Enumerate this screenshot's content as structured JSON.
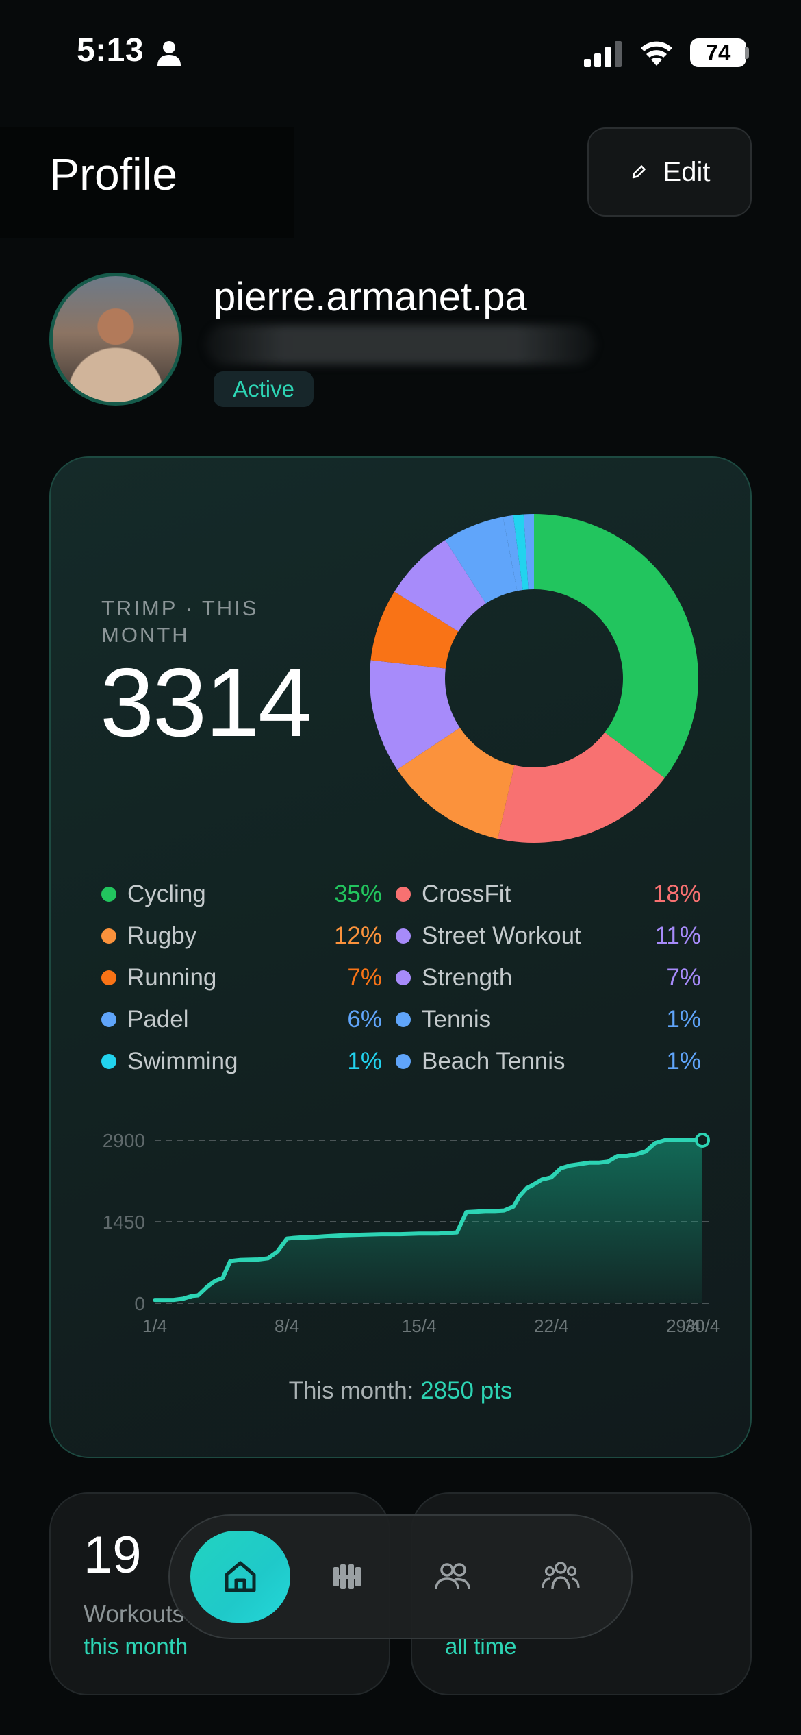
{
  "status_bar": {
    "time": "5:13",
    "battery": "74"
  },
  "header": {
    "title": "Profile",
    "edit_label": "Edit"
  },
  "profile": {
    "username": "pierre.armanet.pa",
    "status_badge": "Active"
  },
  "trimp": {
    "label": "TRIMP · THIS MONTH",
    "value": "3314",
    "month_total_prefix": "This month: ",
    "month_total_value": "2850 pts"
  },
  "chart_data": [
    {
      "type": "pie",
      "title": "",
      "donut": true,
      "categories": [
        "Cycling",
        "CrossFit",
        "Rugby",
        "Street Workout",
        "Running",
        "Strength",
        "Padel",
        "Tennis",
        "Swimming",
        "Beach Tennis"
      ],
      "values": [
        35,
        18,
        12,
        11,
        7,
        7,
        6,
        1,
        1,
        1
      ],
      "labels": [
        "35%",
        "18%",
        "12%",
        "11%",
        "7%",
        "7%",
        "6%",
        "1%",
        "1%",
        "1%"
      ],
      "colors": [
        "#22c55e",
        "#f87171",
        "#fb923c",
        "#a78bfa",
        "#f97316",
        "#a78bfa",
        "#60a5fa",
        "#60a5fa",
        "#22d3ee",
        "#60a5fa"
      ],
      "legend": "below"
    },
    {
      "type": "area",
      "title": "",
      "xlabel": "",
      "ylabel": "",
      "x_ticks": [
        "1/4",
        "8/4",
        "15/4",
        "22/4",
        "29/4",
        "30/4"
      ],
      "y_ticks": [
        "0",
        "1450",
        "2900"
      ],
      "ylim": [
        0,
        2900
      ],
      "xlim": [
        1,
        30
      ],
      "grid": true,
      "color": "#2dd4b4",
      "x": [
        1,
        2,
        2.5,
        3,
        3.3,
        3.8,
        4.2,
        4.6,
        5,
        5.5,
        6.5,
        7,
        7.5,
        8,
        8.3,
        8.7,
        9,
        9.5,
        10,
        11,
        12,
        13,
        14,
        15,
        16,
        17,
        17.5,
        18,
        18.5,
        19,
        19.5,
        20,
        20.3,
        20.7,
        21,
        21.5,
        22,
        22.5,
        23,
        24,
        24.5,
        25,
        25.5,
        26,
        26.5,
        27,
        27.5,
        28,
        28.5,
        29,
        29.5,
        30
      ],
      "y": [
        60,
        60,
        80,
        130,
        140,
        300,
        400,
        450,
        750,
        770,
        780,
        800,
        920,
        1150,
        1160,
        1170,
        1170,
        1180,
        1190,
        1210,
        1220,
        1230,
        1230,
        1240,
        1240,
        1260,
        1620,
        1630,
        1640,
        1640,
        1650,
        1720,
        1900,
        2050,
        2100,
        2200,
        2240,
        2400,
        2450,
        2500,
        2500,
        2520,
        2620,
        2620,
        2650,
        2700,
        2850,
        2900,
        2900,
        2900,
        2900,
        2900
      ]
    }
  ],
  "stats": {
    "workouts_count": "19",
    "workouts_label": "Workouts",
    "workouts_sub": "this month",
    "right_sub": "all time"
  },
  "icons": {
    "home": "home-icon",
    "workouts": "dumbbell-icon",
    "friends": "friends-icon",
    "groups": "groups-icon",
    "edit": "pencil-icon"
  }
}
